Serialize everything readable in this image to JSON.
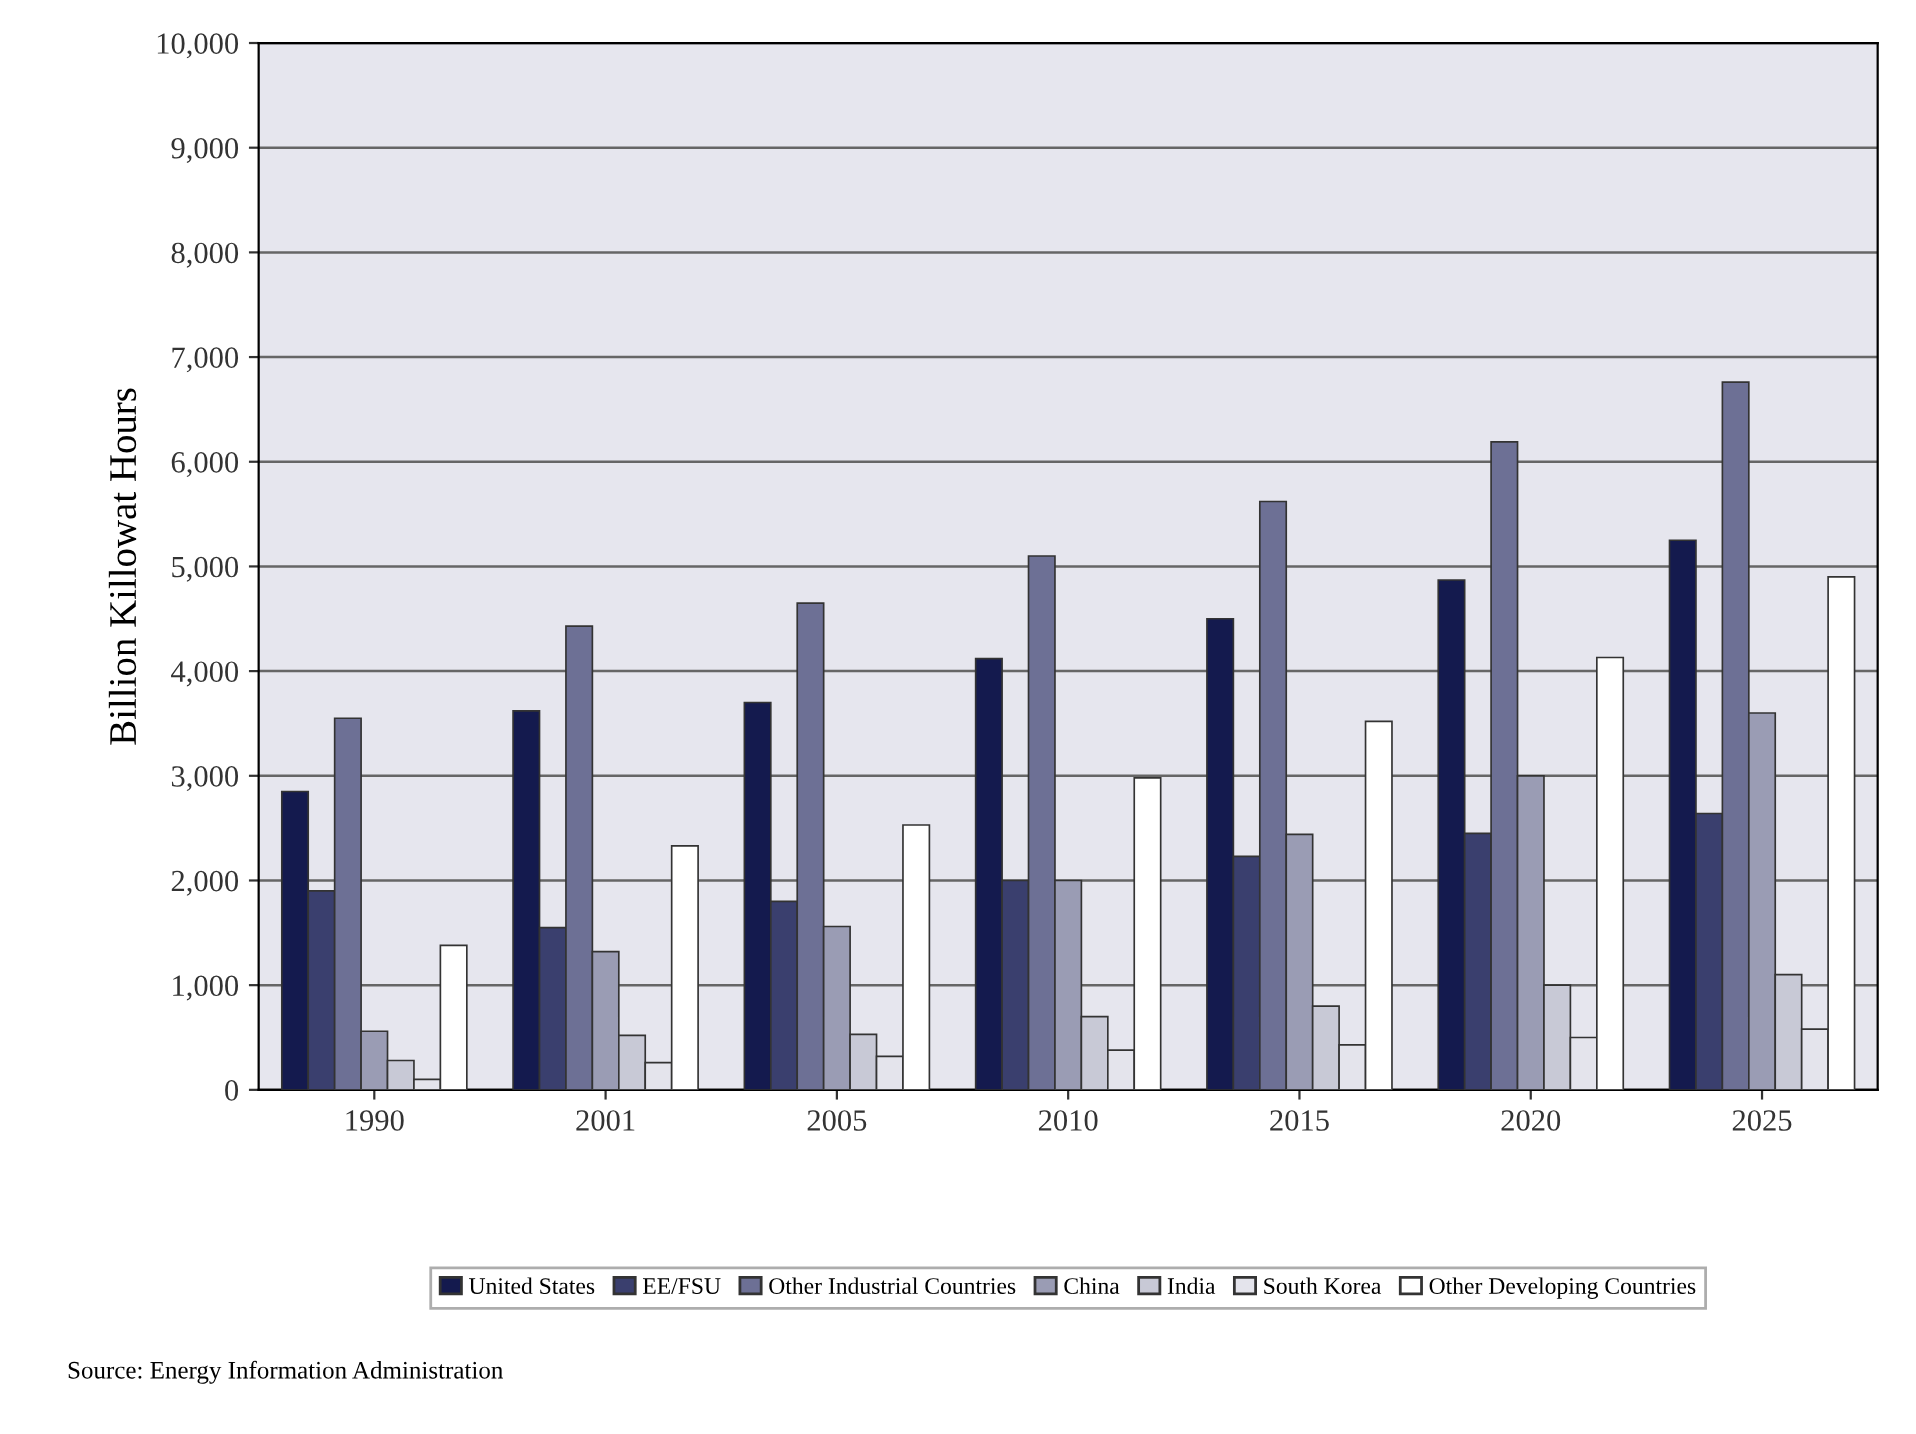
{
  "chart_data": {
    "type": "bar",
    "ylabel": "Billion Killowat Hours",
    "categories": [
      "1990",
      "2001",
      "2005",
      "2010",
      "2015",
      "2020",
      "2025"
    ],
    "series": [
      {
        "name": "United States",
        "color": "#141a4e",
        "values": [
          2850,
          3620,
          3700,
          4120,
          4500,
          4870,
          5250
        ]
      },
      {
        "name": "EE/FSU",
        "color": "#3a3f6e",
        "values": [
          1900,
          1550,
          1800,
          2000,
          2230,
          2450,
          2640
        ]
      },
      {
        "name": "Other Industrial Countries",
        "color": "#6d7095",
        "values": [
          3550,
          4430,
          4650,
          5100,
          5620,
          6190,
          6760
        ]
      },
      {
        "name": "China",
        "color": "#9a9cb4",
        "values": [
          560,
          1320,
          1560,
          2000,
          2440,
          3000,
          3600
        ]
      },
      {
        "name": "India",
        "color": "#c8c9d6",
        "values": [
          280,
          520,
          530,
          700,
          800,
          1000,
          1100
        ]
      },
      {
        "name": "South Korea",
        "color": "#e4e4ec",
        "values": [
          100,
          260,
          320,
          380,
          430,
          500,
          580
        ]
      },
      {
        "name": "Other Developing Countries",
        "color": "#ffffff",
        "values": [
          1380,
          2330,
          2530,
          2980,
          3520,
          4130,
          4900
        ]
      }
    ],
    "ylim": [
      0,
      10000
    ],
    "yticks": [
      {
        "value": 0,
        "label": "0"
      },
      {
        "value": 1000,
        "label": "1,000"
      },
      {
        "value": 2000,
        "label": "2,000"
      },
      {
        "value": 3000,
        "label": "3,000"
      },
      {
        "value": 4000,
        "label": "4,000"
      },
      {
        "value": 5000,
        "label": "5,000"
      },
      {
        "value": 6000,
        "label": "6,000"
      },
      {
        "value": 7000,
        "label": "7,000"
      },
      {
        "value": 8000,
        "label": "8,000"
      },
      {
        "value": 9000,
        "label": "9,000"
      },
      {
        "value": 10000,
        "label": "10,000"
      }
    ],
    "grid": "y",
    "legend": "bottom",
    "annotations": [
      "Source: Energy Information Administration"
    ]
  }
}
